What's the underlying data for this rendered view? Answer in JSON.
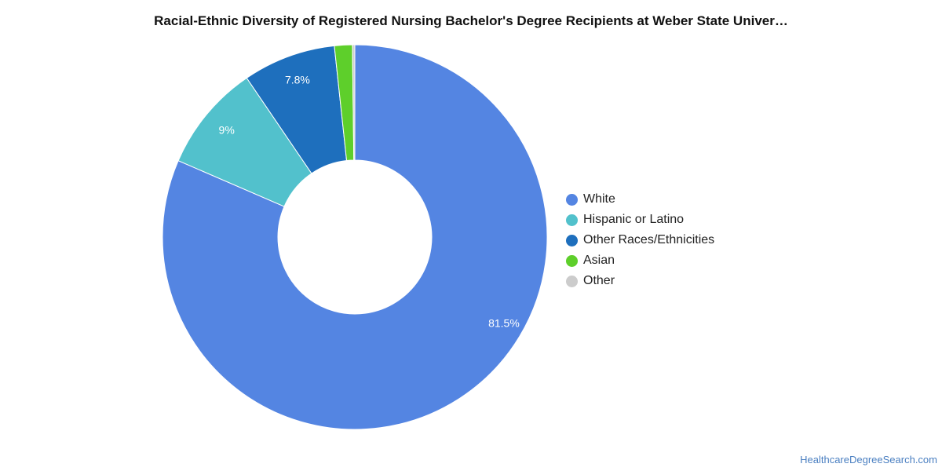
{
  "chart_data": {
    "type": "pie",
    "title": "Racial-Ethnic Diversity of Registered Nursing Bachelor's Degree Recipients at Weber State Univer…",
    "slices": [
      {
        "label": "White",
        "value": 81.5,
        "display": "81.5%",
        "color": "#5485e2"
      },
      {
        "label": "Hispanic or Latino",
        "value": 9.0,
        "display": "9%",
        "color": "#52c1cc"
      },
      {
        "label": "Other Races/Ethnicities",
        "value": 7.8,
        "display": "7.8%",
        "color": "#1e6fbd"
      },
      {
        "label": "Asian",
        "value": 1.5,
        "display": "",
        "color": "#5ecf2b"
      },
      {
        "label": "Other",
        "value": 0.2,
        "display": "",
        "color": "#cccccc"
      }
    ],
    "legend_position": "right",
    "donut": true
  },
  "credit": "HealthcareDegreeSearch.com"
}
